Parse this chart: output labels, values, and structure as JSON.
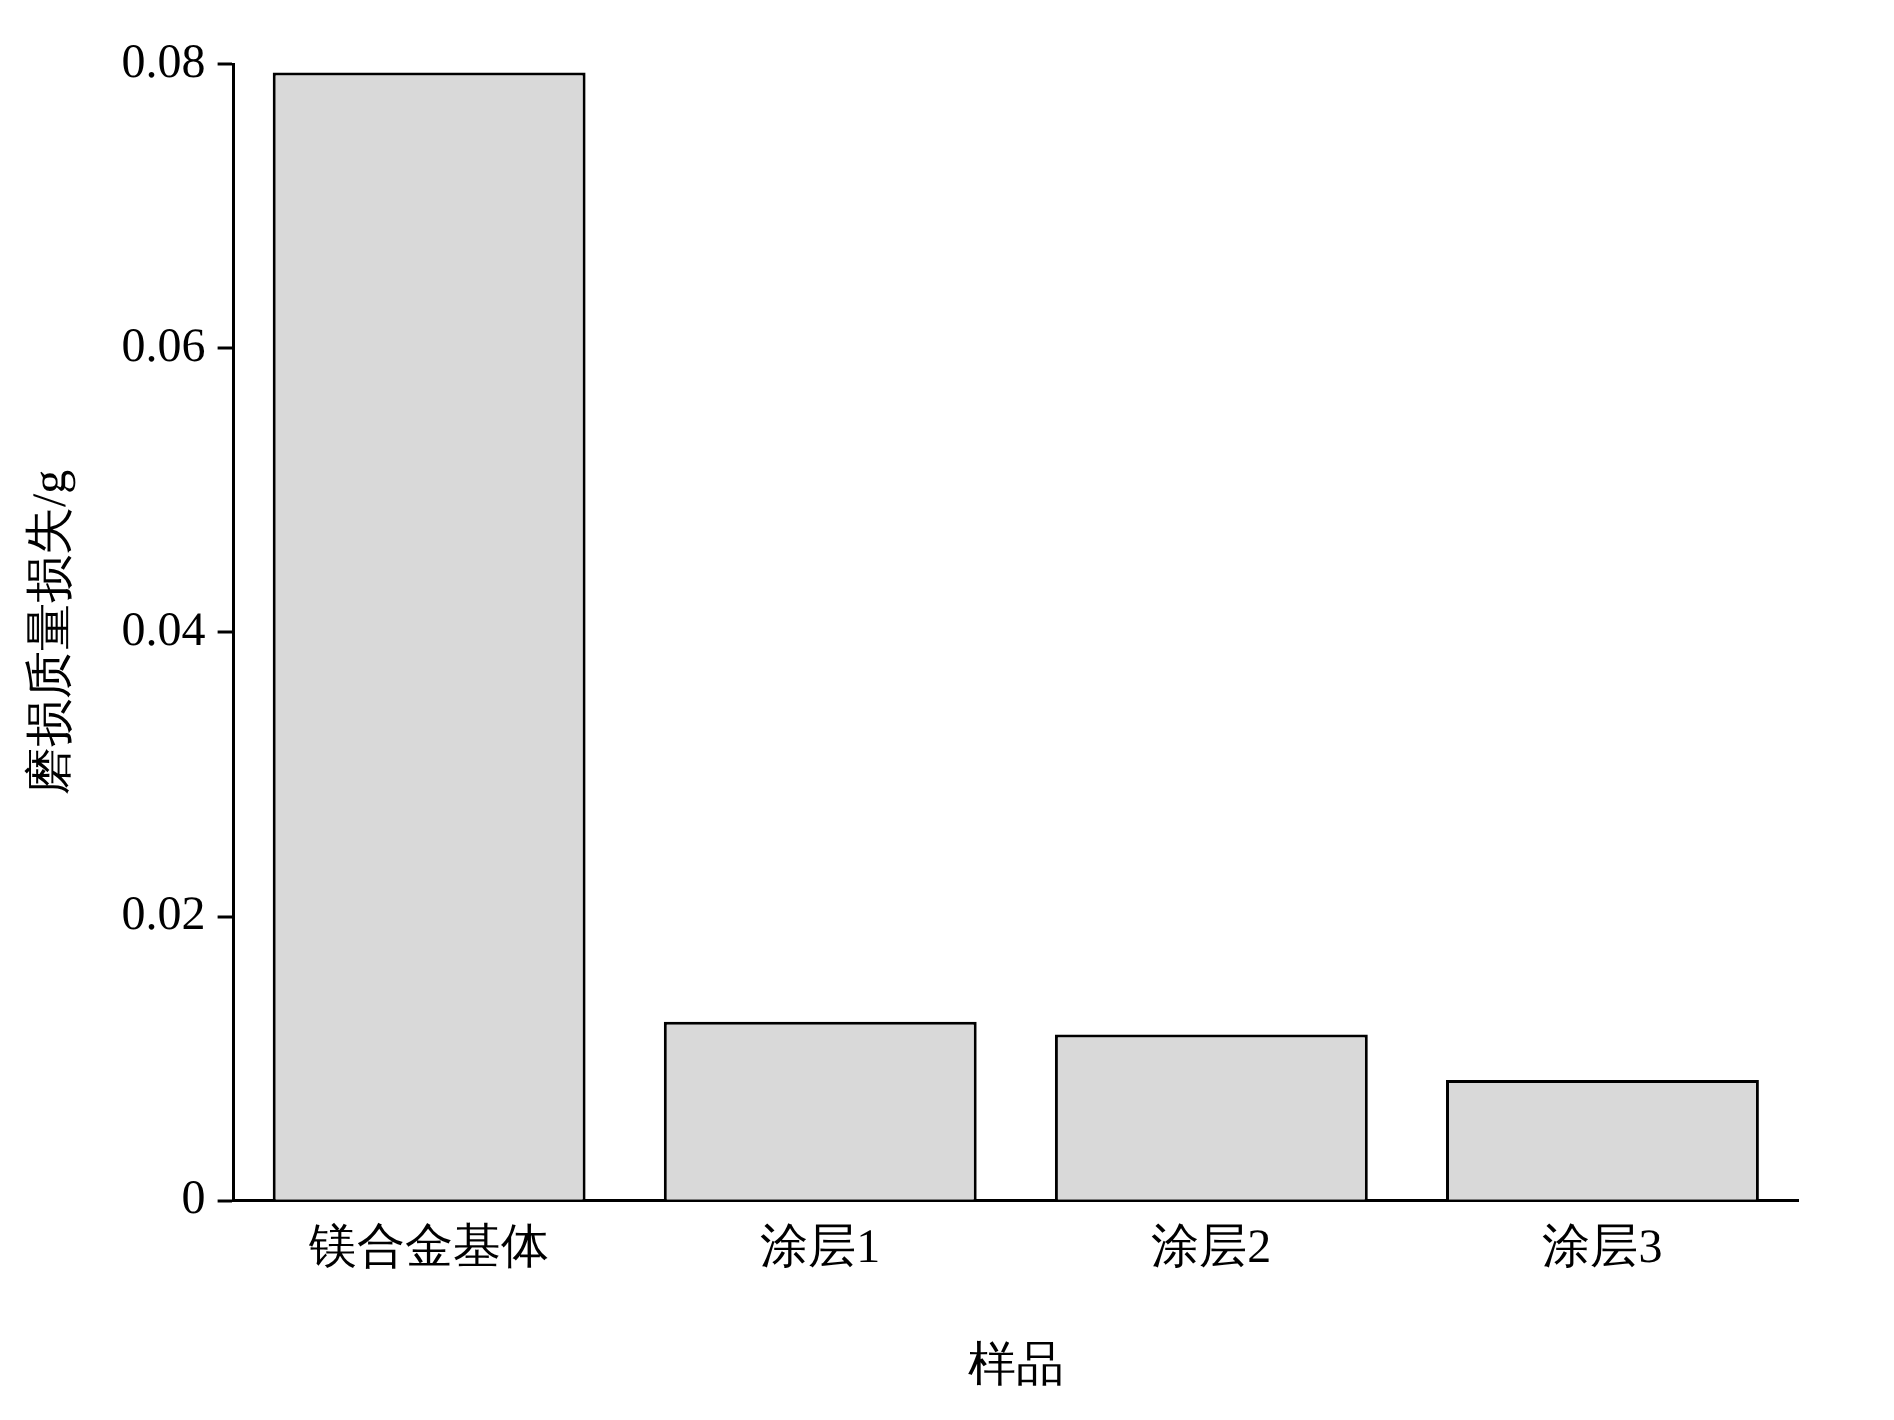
{
  "chart_data": {
    "type": "bar",
    "xlabel": "样品",
    "ylabel": "磨损质量损失/g",
    "categories": [
      "镁合金基体",
      "涂层1",
      "涂层2",
      "涂层3"
    ],
    "values": [
      0.0794,
      0.0126,
      0.0117,
      0.0085
    ],
    "color": "#d9d9d9",
    "ylim": [
      0,
      0.08
    ],
    "yticks": [
      0,
      0.02,
      0.04,
      0.06,
      0.08
    ],
    "grid": false,
    "legend": false
  }
}
